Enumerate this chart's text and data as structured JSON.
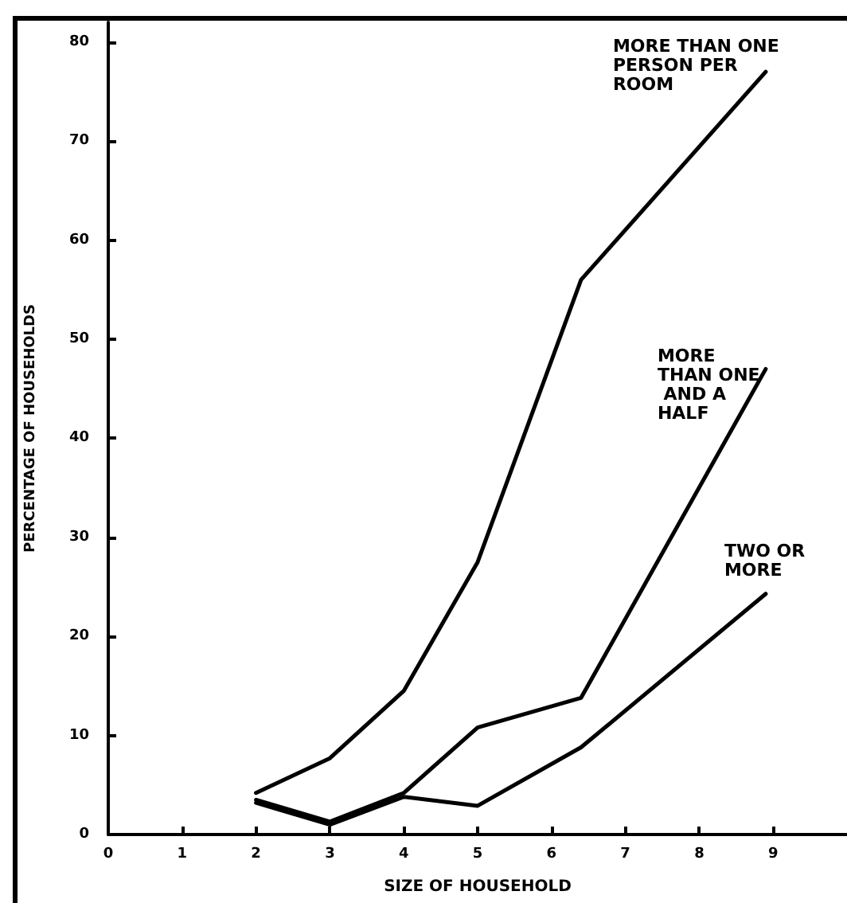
{
  "chart_data": {
    "type": "line",
    "xlabel": "SIZE OF HOUSEHOLD",
    "ylabel": "PERCENTAGE OF HOUSEHOLDS",
    "x": [
      2,
      3,
      4,
      5,
      6.4,
      8.9
    ],
    "series": [
      {
        "name": "MORE THAN ONE PERSON PER ROOM",
        "color": "#000000",
        "values": [
          4.2,
          7.7,
          14.5,
          27.5,
          56,
          77
        ]
      },
      {
        "name": "MORE THAN ONE AND A HALF",
        "color": "#000000",
        "values": [
          3.5,
          1.3,
          4.2,
          10.8,
          13.8,
          47
        ]
      },
      {
        "name": "TWO OR MORE",
        "color": "#000000",
        "values": [
          3.2,
          1.0,
          3.8,
          2.9,
          8.8,
          24.3
        ]
      }
    ],
    "xlim": [
      0,
      10
    ],
    "xticks": [
      0,
      1,
      2,
      3,
      4,
      5,
      6,
      7,
      8,
      9
    ],
    "ylim": [
      0,
      82
    ],
    "yticks": [
      0,
      10,
      20,
      30,
      40,
      50,
      60,
      70,
      80
    ],
    "grid": false,
    "legend": false,
    "marker": "none",
    "line_style": "solid"
  }
}
